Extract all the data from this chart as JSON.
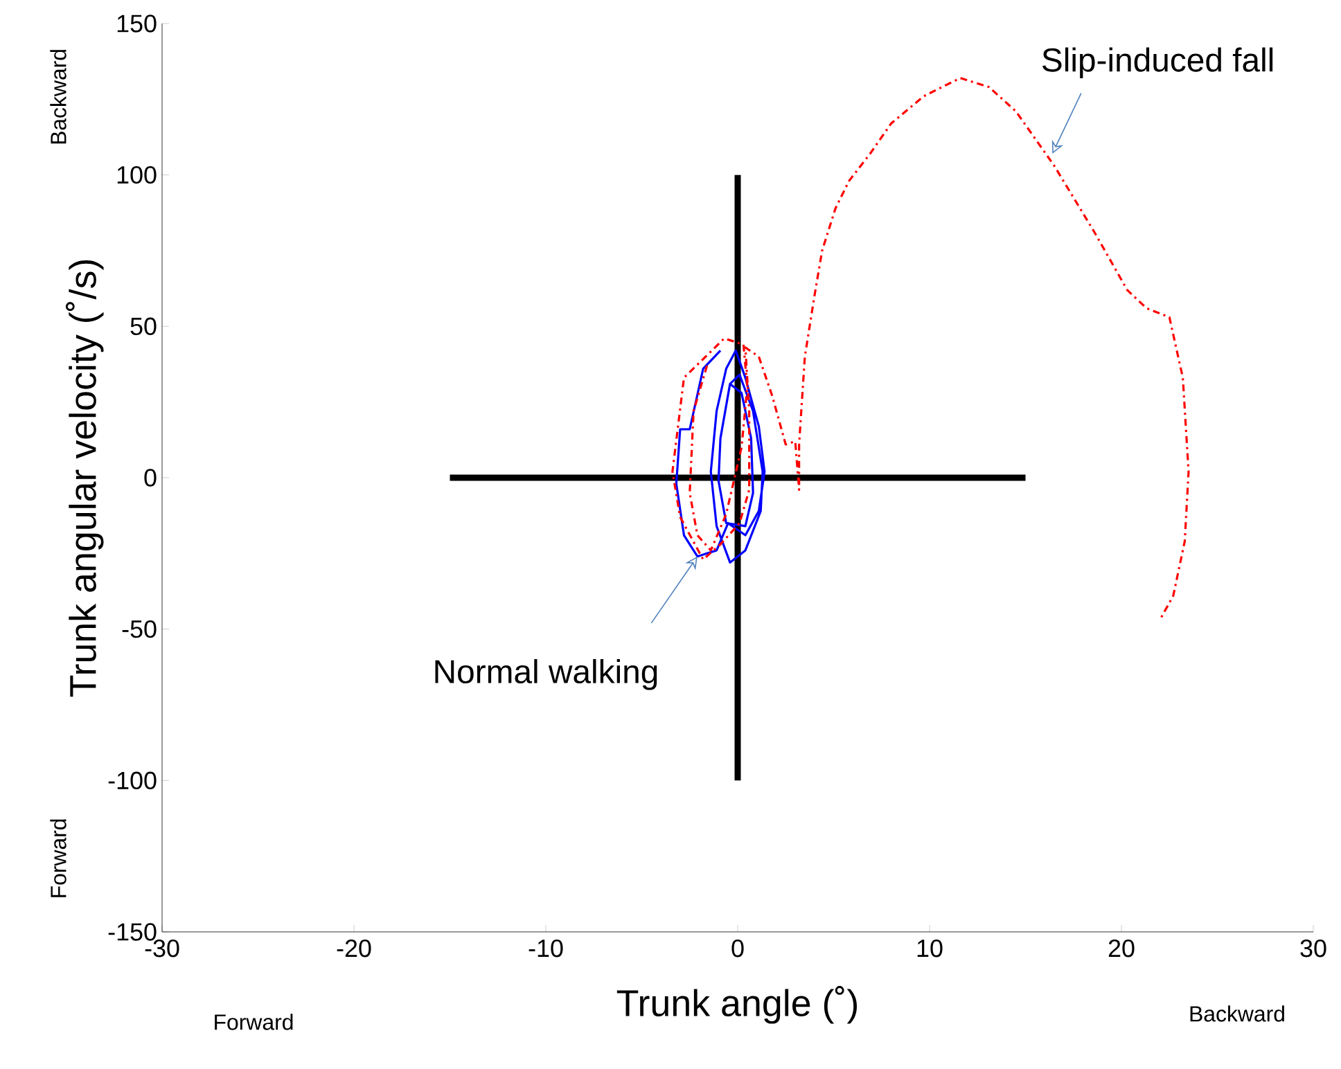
{
  "chart_data": {
    "type": "line",
    "xlabel": "Trunk angle (˚)",
    "ylabel": "Trunk angular velocity (˚/s)",
    "xlim": [
      -30,
      30
    ],
    "xticks": [
      -30,
      -20,
      -10,
      0,
      10,
      20,
      30
    ],
    "ylim": [
      -150,
      150
    ],
    "yticks": [
      -150,
      -100,
      -50,
      0,
      50,
      100,
      150
    ],
    "marker": "none",
    "series": [
      {
        "color": "#000000",
        "x": [
          -15,
          15
        ],
        "values": [
          0,
          0
        ],
        "line_style": "solid"
      },
      {
        "color": "#000000",
        "x": [
          0,
          0
        ],
        "values": [
          -100,
          100
        ],
        "line_style": "solid"
      },
      {
        "color": "#0000ff",
        "line_style": "solid",
        "x": [
          -0.9,
          -1.8,
          -2.5,
          -3.0,
          -3.2,
          -2.8,
          -2.1,
          -1.1,
          -0.5,
          0.4,
          1.1,
          1.4,
          1.1,
          0.4,
          -0.1,
          -0.6,
          -1.1,
          -1.4,
          -1.1,
          -0.4,
          0.4,
          1.2,
          1.3,
          0.8,
          0.1,
          -0.4,
          -0.9,
          -1.0,
          -0.6,
          0.4,
          0.8,
          0.7,
          0.2,
          -0.4
        ],
        "values": [
          42,
          36,
          16,
          16,
          -2,
          -19,
          -26,
          -24,
          -15,
          -19,
          -11,
          2,
          17,
          33,
          42,
          36,
          22,
          2,
          -16,
          -28,
          -24,
          -11,
          2,
          22,
          34,
          31,
          13,
          -1,
          -15,
          -16,
          -5,
          13,
          28,
          31
        ]
      },
      {
        "color": "#ff0000",
        "line_style": "dashdot",
        "x": [
          -1.6,
          -2.3,
          -2.5,
          -2.1,
          -1.4,
          -0.6,
          0.2,
          0.5,
          0.3,
          -0.7,
          -2.8,
          -3.4,
          -3.0,
          -1.8,
          -0.9,
          0.1,
          0.6,
          0.6,
          0.4,
          1.1,
          1.8,
          2.5,
          3.0,
          3.2,
          3.2,
          3.5,
          4.0,
          4.4,
          5.1,
          5.8,
          6.9,
          8.0,
          9.7,
          11.6,
          13.1,
          14.5,
          16.5,
          18.6,
          20.3,
          21.3,
          22.5,
          23.2,
          23.5,
          23.3,
          22.7,
          22.0
        ],
        "values": [
          37,
          22,
          -5,
          -19,
          -24,
          -12,
          10,
          30,
          44,
          46,
          33,
          2,
          -13,
          -27,
          -22,
          -15,
          -4,
          22,
          43,
          40,
          27,
          11,
          12,
          -4,
          11,
          40,
          60,
          75,
          89,
          98,
          107,
          117,
          126,
          132,
          129,
          121,
          103,
          81,
          62,
          56,
          53,
          33,
          2,
          -21,
          -39,
          -47
        ]
      }
    ],
    "annotations": [
      {
        "text": "Slip-induced fall",
        "x": 16.4,
        "y": 107
      },
      {
        "text": "Normal walking",
        "x": -2.1,
        "y": -26
      },
      "Backward",
      "Forward",
      "Forward",
      "Backward"
    ]
  }
}
